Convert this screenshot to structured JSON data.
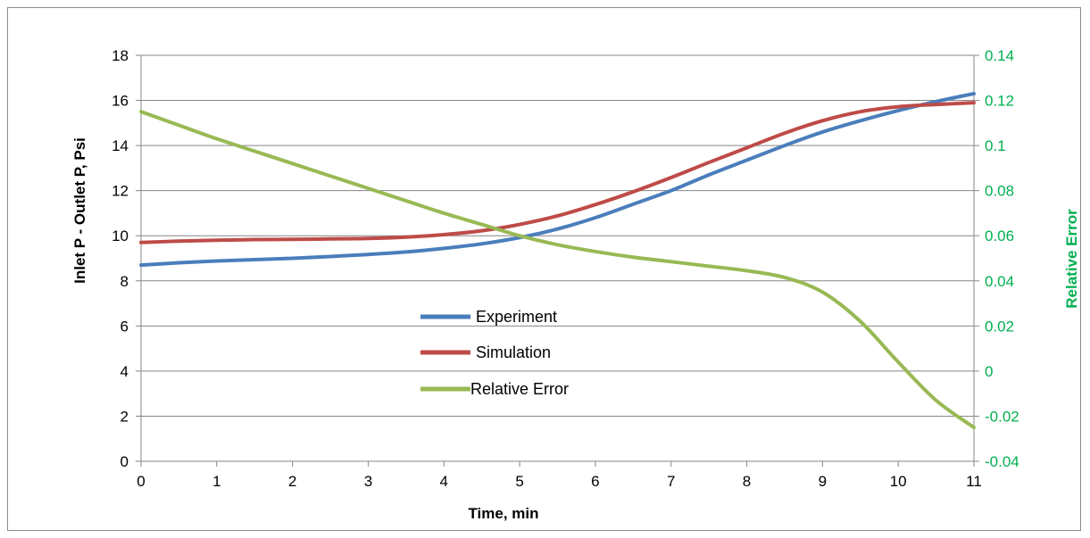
{
  "chart_data": {
    "type": "line",
    "title": "",
    "xlabel": "Time, min",
    "ylabel": "Inlet P - Outlet P, Psi",
    "y2label": "Relative Error",
    "xlim": [
      0,
      11
    ],
    "ylim": [
      0,
      18
    ],
    "y2lim": [
      -0.04,
      0.14
    ],
    "xticks": [
      "0",
      "1",
      "2",
      "3",
      "4",
      "5",
      "6",
      "7",
      "8",
      "9",
      "10",
      "11"
    ],
    "yticks": [
      "0",
      "2",
      "4",
      "6",
      "8",
      "10",
      "12",
      "14",
      "16",
      "18"
    ],
    "y2ticks": [
      "-0.04",
      "-0.02",
      "0",
      "0.02",
      "0.04",
      "0.06",
      "0.08",
      "0.1",
      "0.12",
      "0.14"
    ],
    "grid": "horizontal",
    "legend_position": "center",
    "x": [
      0,
      0.5,
      1,
      1.5,
      2,
      2.5,
      3,
      3.5,
      4,
      4.5,
      5,
      5.5,
      6,
      6.5,
      7,
      7.5,
      8,
      8.5,
      9,
      9.5,
      10,
      10.5,
      11
    ],
    "series": [
      {
        "name": "Experiment",
        "axis": "left",
        "color": "#4a7ebb",
        "values": [
          8.7,
          8.8,
          8.88,
          8.94,
          9.0,
          9.08,
          9.17,
          9.28,
          9.44,
          9.64,
          9.92,
          10.3,
          10.8,
          11.4,
          12.0,
          12.7,
          13.35,
          14.0,
          14.6,
          15.1,
          15.55,
          15.95,
          16.3
        ]
      },
      {
        "name": "Simulation",
        "axis": "left",
        "color": "#be4b48",
        "values": [
          9.7,
          9.76,
          9.8,
          9.83,
          9.84,
          9.86,
          9.88,
          9.94,
          10.05,
          10.22,
          10.5,
          10.88,
          11.38,
          11.95,
          12.58,
          13.25,
          13.9,
          14.55,
          15.1,
          15.5,
          15.72,
          15.82,
          15.9
        ]
      },
      {
        "name": "Relative Error",
        "axis": "right",
        "color": "#98b954",
        "values": [
          0.115,
          0.109,
          0.103,
          0.0975,
          0.092,
          0.0865,
          0.081,
          0.0755,
          0.07,
          0.065,
          0.06,
          0.056,
          0.053,
          0.0505,
          0.0485,
          0.0465,
          0.0445,
          0.0415,
          0.035,
          0.022,
          0.004,
          -0.013,
          -0.025
        ]
      }
    ],
    "colors": {
      "right_axis": "#00b050",
      "grid": "#868686",
      "axis": "#868686"
    }
  }
}
